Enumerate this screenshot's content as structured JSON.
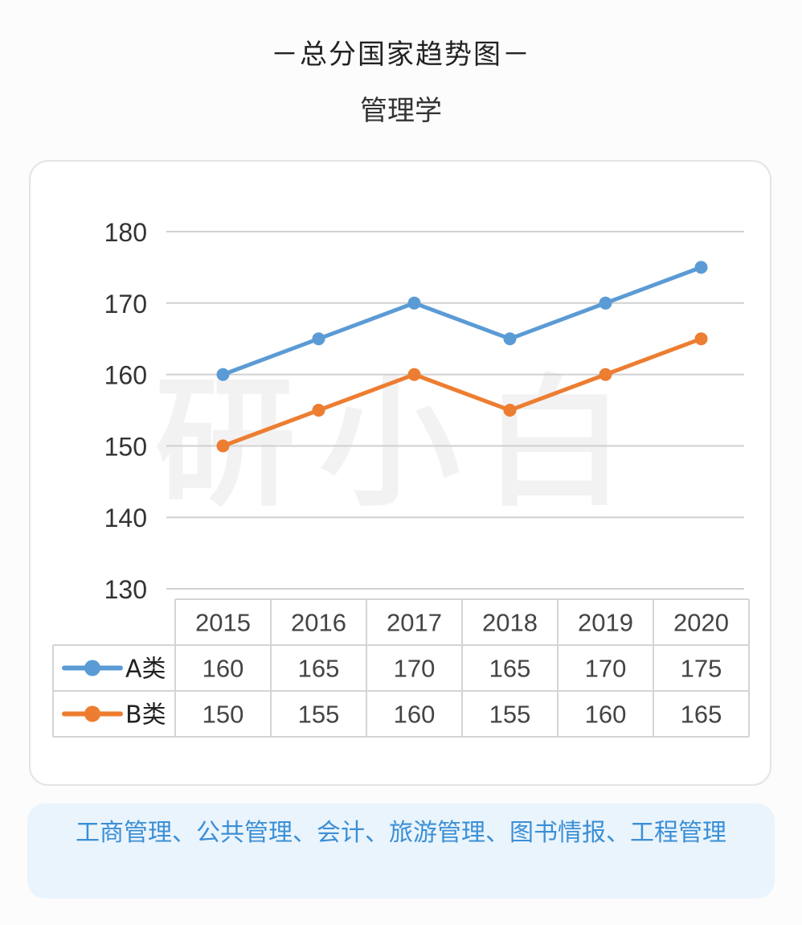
{
  "header": {
    "title": "－总分国家趋势图－",
    "subtitle": "管理学"
  },
  "chart_data": {
    "type": "line",
    "categories": [
      "2015",
      "2016",
      "2017",
      "2018",
      "2019",
      "2020"
    ],
    "series": [
      {
        "name": "A类",
        "values": [
          160,
          165,
          170,
          165,
          170,
          175
        ],
        "color": "#5b9bd5"
      },
      {
        "name": "B类",
        "values": [
          150,
          155,
          160,
          155,
          160,
          165
        ],
        "color": "#ed7d31"
      }
    ],
    "yticks": [
      "130",
      "140",
      "150",
      "160",
      "170",
      "180"
    ],
    "ylim": [
      130,
      180
    ],
    "grid": true,
    "data_table": true,
    "watermark": "研小白"
  },
  "footer": {
    "majors": "工商管理、公共管理、会计、旅游管理、图书情报、工程管理"
  }
}
